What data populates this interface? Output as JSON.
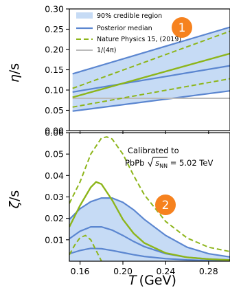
{
  "chart_data": [
    {
      "type": "line",
      "ylabel_main": "η",
      "ylabel_sub": "/s",
      "ylim": [
        0.0,
        0.3
      ],
      "xlim": [
        0.15,
        0.3
      ],
      "yticks": [
        "0.00",
        "0.05",
        "0.10",
        "0.15",
        "0.20",
        "0.25",
        "0.30"
      ],
      "legend_position": "top-left",
      "legend": {
        "band": "90% credible region",
        "median": "Posterior median",
        "nature": "Nature Physics 15, (2019)",
        "bound": "1/(4π)"
      },
      "badge": "1",
      "colors": {
        "band_fill": "#c6dbf5",
        "band_edge": "#5b86d0",
        "nature": "#8db51a",
        "bound": "#bbbbbb",
        "badge": "#f6821f"
      },
      "credible_band": {
        "x": [
          0.153,
          0.3
        ],
        "lower": [
          0.048,
          0.098
        ],
        "upper": [
          0.14,
          0.255
        ]
      },
      "posterior_median": {
        "x": [
          0.153,
          0.3
        ],
        "y": [
          0.095,
          0.16
        ]
      },
      "nature_central": {
        "x": [
          0.153,
          0.3
        ],
        "y": [
          0.082,
          0.19
        ]
      },
      "nature_upper": {
        "x": [
          0.153,
          0.3
        ],
        "y": [
          0.104,
          0.245
        ]
      },
      "nature_lower": {
        "x": [
          0.153,
          0.3
        ],
        "y": [
          0.058,
          0.128
        ]
      },
      "kss_bound": {
        "x": [
          0.153,
          0.3
        ],
        "y": [
          0.0796,
          0.0796
        ]
      }
    },
    {
      "type": "line",
      "ylabel_main": "ζ",
      "ylabel_sub": "/s",
      "xlabel_main": "T",
      "xlabel_unit": "(GeV)",
      "ylim": [
        0.0,
        0.06
      ],
      "xlim": [
        0.15,
        0.3
      ],
      "yticks": [
        "0.01",
        "0.02",
        "0.03",
        "0.04",
        "0.05",
        "0.06"
      ],
      "xticks": [
        "0.16",
        "0.20",
        "0.24",
        "0.28"
      ],
      "annotation_line1": "Calibrated to",
      "annotation_line2_prefix": "PbPb ",
      "annotation_line2_suffix": " = 5.02 TeV",
      "annotation_sqrt_s": "s",
      "annotation_sub_nn": "NN",
      "badge": "2",
      "credible_band": {
        "x": [
          0.15,
          0.16,
          0.17,
          0.18,
          0.19,
          0.2,
          0.21,
          0.22,
          0.24,
          0.26,
          0.28,
          0.3
        ],
        "lower": [
          0.0,
          0.0,
          0.0,
          0.0,
          0.0,
          0.0,
          0.0,
          0.0,
          0.0,
          0.0,
          0.0,
          0.0
        ],
        "upper": [
          0.0195,
          0.0245,
          0.0278,
          0.0295,
          0.0295,
          0.0275,
          0.024,
          0.0195,
          0.012,
          0.0065,
          0.0035,
          0.002
        ]
      },
      "upper_edge": {
        "x": [
          0.15,
          0.16,
          0.17,
          0.18,
          0.19,
          0.2,
          0.21,
          0.22,
          0.24,
          0.26,
          0.28,
          0.3
        ],
        "y": [
          0.0195,
          0.0245,
          0.0278,
          0.0295,
          0.0295,
          0.0275,
          0.024,
          0.0195,
          0.012,
          0.0065,
          0.0035,
          0.002
        ]
      },
      "posterior_median": {
        "x": [
          0.15,
          0.16,
          0.17,
          0.18,
          0.19,
          0.2,
          0.21,
          0.22,
          0.24,
          0.26,
          0.28,
          0.3
        ],
        "y": [
          0.0105,
          0.014,
          0.016,
          0.016,
          0.0145,
          0.012,
          0.0092,
          0.0068,
          0.0035,
          0.0018,
          0.001,
          0.0006
        ]
      },
      "lower_edge": {
        "x": [
          0.15,
          0.16,
          0.17,
          0.18,
          0.19,
          0.2,
          0.21,
          0.22,
          0.24,
          0.26,
          0.28,
          0.3
        ],
        "y": [
          0.0035,
          0.005,
          0.006,
          0.0058,
          0.005,
          0.004,
          0.003,
          0.0022,
          0.0012,
          0.0006,
          0.0003,
          0.0002
        ]
      },
      "nature_upper": {
        "x": [
          0.15,
          0.16,
          0.17,
          0.18,
          0.185,
          0.19,
          0.2,
          0.21,
          0.22,
          0.24,
          0.26,
          0.28,
          0.3
        ],
        "y": [
          0.027,
          0.037,
          0.05,
          0.0575,
          0.058,
          0.057,
          0.05,
          0.04,
          0.031,
          0.0185,
          0.0108,
          0.0065,
          0.0045
        ]
      },
      "nature_central": {
        "x": [
          0.15,
          0.16,
          0.17,
          0.175,
          0.18,
          0.19,
          0.2,
          0.21,
          0.22,
          0.24,
          0.26,
          0.28,
          0.3
        ],
        "y": [
          0.016,
          0.026,
          0.0345,
          0.037,
          0.036,
          0.0285,
          0.0195,
          0.013,
          0.0085,
          0.0038,
          0.0018,
          0.001,
          0.0005
        ]
      },
      "nature_lower": {
        "x": [
          0.15,
          0.155,
          0.16,
          0.165,
          0.17,
          0.175,
          0.18
        ],
        "y": [
          0.003,
          0.0075,
          0.011,
          0.012,
          0.01,
          0.005,
          0.0
        ]
      }
    }
  ]
}
